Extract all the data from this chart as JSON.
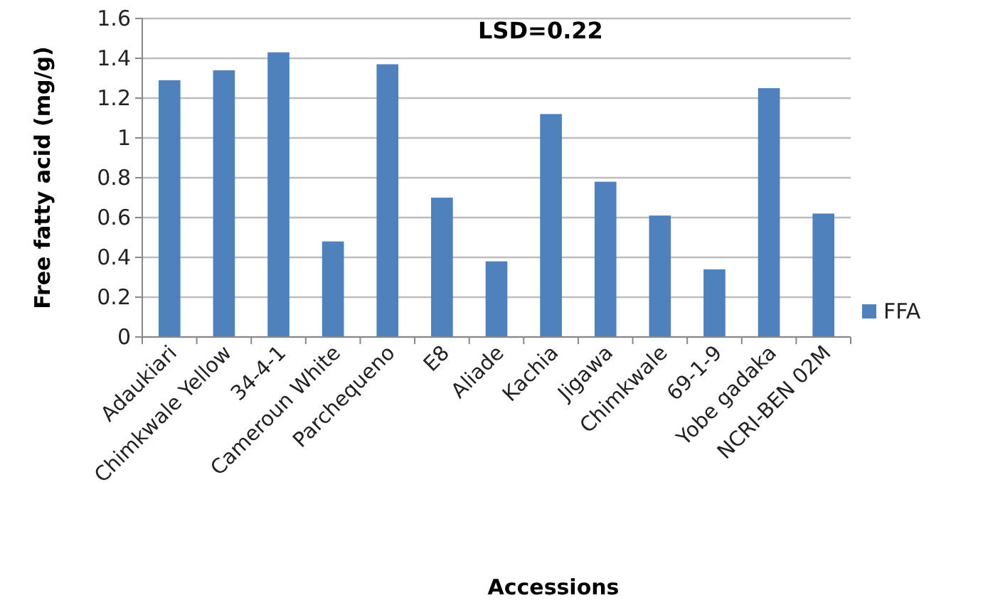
{
  "chart_data": {
    "type": "bar",
    "xlabel": "Accessions",
    "ylabel": "Free fatty acid (mg/g)",
    "annotations": [
      "LSD=0.22"
    ],
    "categories": [
      "Adaukiari",
      "Chimkwale Yellow",
      "34-4-1",
      "Cameroun White",
      "Parchequeno",
      "E8",
      "Aliade",
      "Kachia",
      "Jigawa",
      "Chimkwale",
      "69-1-9",
      "Yobe gadaka",
      "NCRI-BEN 02M"
    ],
    "series": [
      {
        "name": "FFA",
        "color": "#4f81bd",
        "values": [
          1.29,
          1.34,
          1.43,
          0.48,
          1.37,
          0.7,
          0.38,
          1.12,
          0.78,
          0.61,
          0.34,
          1.25,
          0.62
        ]
      }
    ],
    "ylim": [
      0,
      1.6
    ],
    "yticks": [
      0,
      0.2,
      0.4,
      0.6,
      0.8,
      1,
      1.2,
      1.4,
      1.6
    ],
    "grid": "y",
    "legend": "right"
  }
}
